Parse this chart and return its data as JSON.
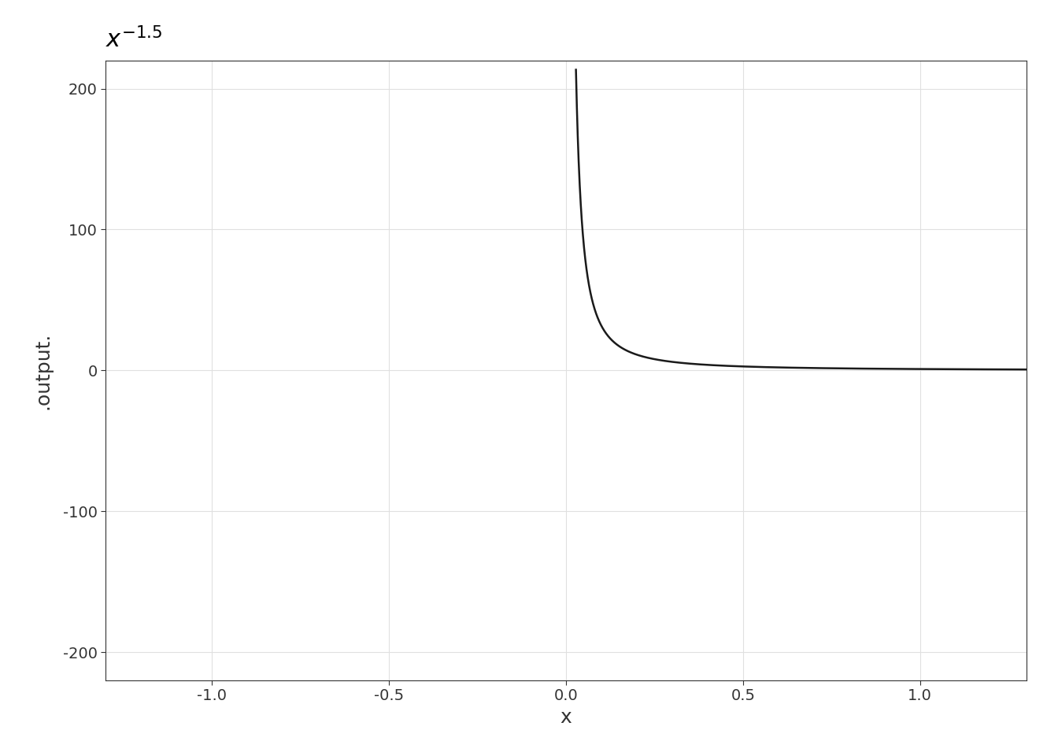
{
  "title": "$x^{-1.5}$",
  "xlabel": "x",
  "ylabel": ".output.",
  "xlim": [
    -1.3,
    1.3
  ],
  "ylim": [
    -220,
    220
  ],
  "exponent": -1.5,
  "x_start": 0.028,
  "x_end": 1.3,
  "n_points": 3000,
  "line_color": "#1a1a1a",
  "line_width": 1.8,
  "grid_color": "#e0e0e0",
  "background_color": "#ffffff",
  "plot_area_color": "#ffffff",
  "title_fontsize": 22,
  "label_fontsize": 18,
  "tick_fontsize": 14,
  "yticks": [
    -200,
    -100,
    0,
    100,
    200
  ],
  "xticks": [
    -1.0,
    -0.5,
    0.0,
    0.5,
    1.0
  ]
}
